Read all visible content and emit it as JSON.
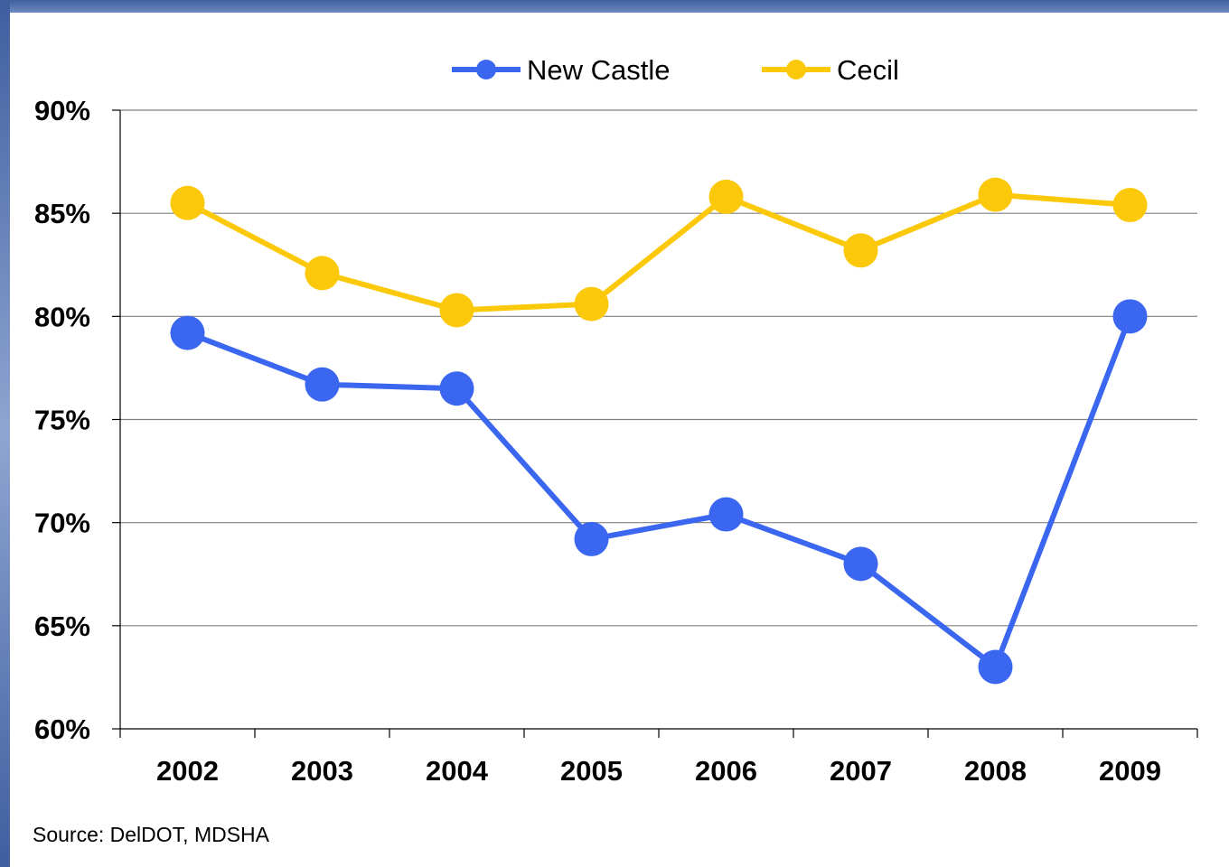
{
  "chart_data": {
    "type": "line",
    "categories": [
      "2002",
      "2003",
      "2004",
      "2005",
      "2006",
      "2007",
      "2008",
      "2009"
    ],
    "series": [
      {
        "name": "New Castle",
        "color": "#3a66f0",
        "values": [
          79.2,
          76.7,
          76.5,
          69.2,
          70.4,
          68.0,
          63.0,
          80.0
        ]
      },
      {
        "name": "Cecil",
        "color": "#fcc80a",
        "values": [
          85.5,
          82.1,
          80.3,
          80.6,
          85.8,
          83.2,
          85.9,
          85.4
        ]
      }
    ],
    "y_ticks": [
      "60%",
      "65%",
      "70%",
      "75%",
      "80%",
      "85%",
      "90%"
    ],
    "ylim": [
      60,
      90
    ],
    "grid": true,
    "legend_position": "top"
  },
  "source_note": "Source: DelDOT, MDSHA",
  "colors": {
    "frame_accent": "#3f5e9e",
    "gridline": "#808080"
  }
}
